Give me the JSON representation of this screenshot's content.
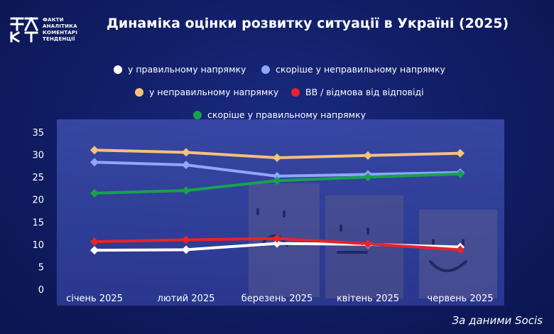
{
  "logo": {
    "icon": "fakt-logo-icon",
    "lines": [
      "ФАКТИ",
      "АНАЛІТИКА",
      "КОМЕНТАРІ",
      "ТЕНДЕНЦІЇ"
    ]
  },
  "header": {
    "title": "Динаміка оцінки розвитку ситуації в Україні (2025)"
  },
  "source": "За даними Socis",
  "chart_data": {
    "type": "line",
    "title": "Динаміка оцінки розвитку ситуації в Україні (2025)",
    "categories": [
      "січень 2025",
      "лютий 2025",
      "березень 2025",
      "квітень 2025",
      "червень 2025"
    ],
    "ylim": [
      0,
      35
    ],
    "yticks": [
      0,
      5,
      10,
      15,
      20,
      25,
      30,
      35
    ],
    "grid": false,
    "legend_position": "top",
    "series": [
      {
        "name": "у правильному напрямку",
        "color": "#ffffff",
        "values": [
          8.7,
          8.8,
          10.2,
          10.0,
          9.4
        ]
      },
      {
        "name": "скоріше у неправильному напрямку",
        "color": "#8fa6ff",
        "values": [
          28.3,
          27.7,
          25.2,
          25.6,
          26.0
        ]
      },
      {
        "name": "у неправильному напрямку",
        "color": "#f7c17e",
        "values": [
          31.0,
          30.5,
          29.3,
          29.8,
          30.3
        ]
      },
      {
        "name": "ВВ / відмова від відповіді",
        "color": "#e8232a",
        "values": [
          10.6,
          11.0,
          11.3,
          10.1,
          8.8
        ]
      },
      {
        "name": "скоріше у правильному напрямку",
        "color": "#17a24a",
        "values": [
          21.4,
          22.0,
          24.2,
          25.0,
          25.7
        ]
      }
    ]
  }
}
